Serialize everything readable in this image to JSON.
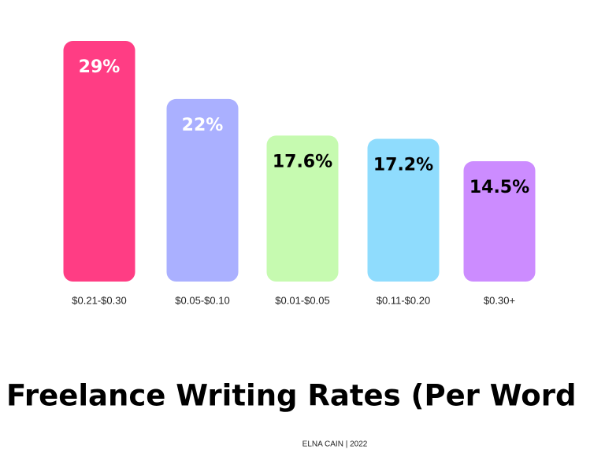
{
  "chart_data": {
    "type": "bar",
    "title": "Freelance Writing Rates (Per Word",
    "credit": "ELNA CAIN | 2022",
    "categories": [
      "$0.21-$0.30",
      "$0.05-$0.10",
      "$0.01-$0.05",
      "$0.11-$0.20",
      "$0.30+"
    ],
    "values": [
      29,
      22,
      17.6,
      17.2,
      14.5
    ],
    "value_labels": [
      "29%",
      "22%",
      "17.6%",
      "17.2%",
      "14.5%"
    ],
    "colors": [
      "#ff3d84",
      "#aab0ff",
      "#c6fab0",
      "#8fdcfd",
      "#cc8cff"
    ],
    "value_label_colors": [
      "#ffffff",
      "#ffffff",
      "#000000",
      "#000000",
      "#000000"
    ]
  }
}
